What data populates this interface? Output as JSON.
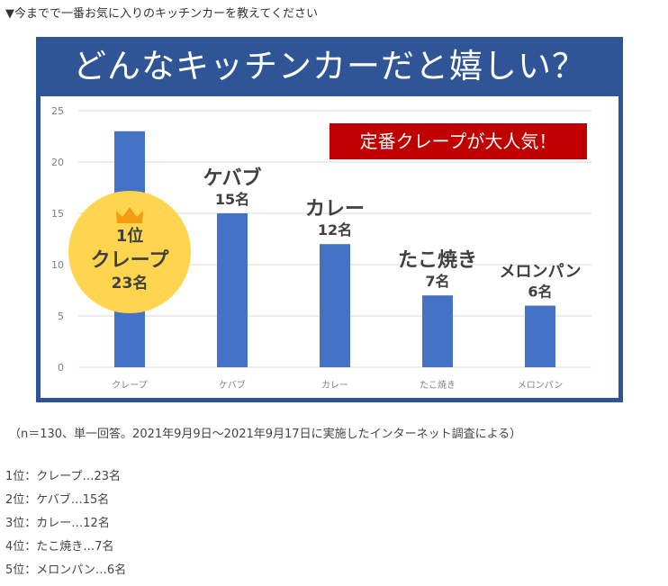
{
  "heading": "▼今までで一番お気に入りのキッチンカーを教えてください",
  "figure_title": "どんなキッチンカーだと嬉しい？",
  "callout": "定番クレープが大人気！",
  "crown_icon": "crown-icon",
  "colors": {
    "bar": "#4472c4",
    "banner": "#2f5597",
    "callout": "#c00000",
    "badge": "#ffd54f",
    "crown": "#f39c12"
  },
  "chart_data": {
    "type": "bar",
    "categories": [
      "クレープ",
      "ケバブ",
      "カレー",
      "たこ焼き",
      "メロンパン"
    ],
    "values": [
      23,
      15,
      12,
      7,
      6
    ],
    "ylim": [
      0,
      25
    ],
    "yticks": [
      "0",
      "5",
      "10",
      "15",
      "20",
      "25"
    ],
    "grid": true,
    "annotations": [
      {
        "lines": [
          "1位",
          "クレープ",
          "23名"
        ]
      },
      {
        "lines": [
          "ケバブ",
          "15名"
        ]
      },
      {
        "lines": [
          "カレー",
          "12名"
        ]
      },
      {
        "lines": [
          "たこ焼き",
          "7名"
        ]
      },
      {
        "lines": [
          "メロンパン",
          "6名"
        ]
      }
    ]
  },
  "note": "（n＝130、単一回答。2021年9月9日～2021年9月17日に実施したインターネット調査による）",
  "ranking": [
    "1位：クレープ…23名",
    "2位：ケバブ…15名",
    "3位：カレー…12名",
    "4位：たこ焼き…7名",
    "5位：メロンパン…6名"
  ]
}
